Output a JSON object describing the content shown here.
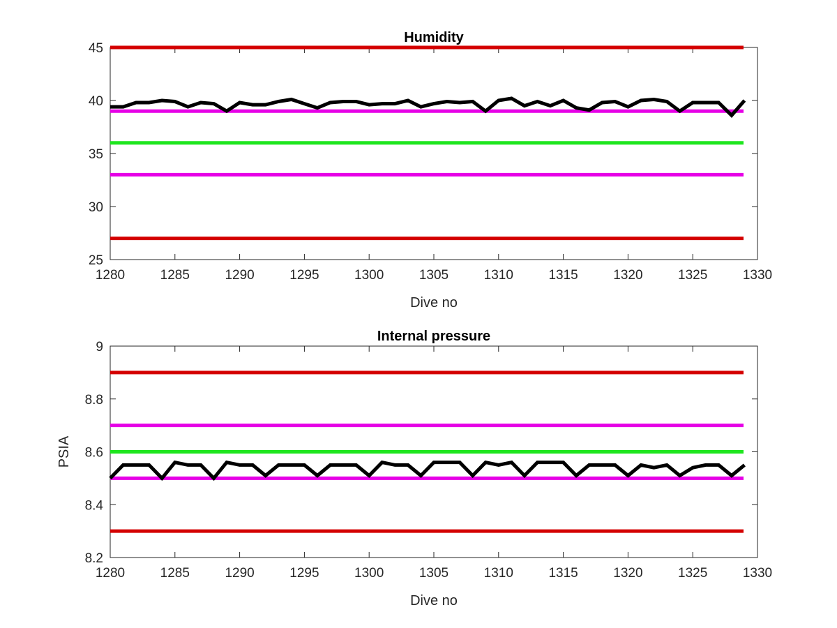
{
  "chart_data": [
    {
      "type": "line",
      "title": "Humidity",
      "xlabel": "Dive no",
      "ylabel": "",
      "xlim": [
        1280,
        1330
      ],
      "ylim": [
        25,
        45
      ],
      "xticks": [
        1280,
        1285,
        1290,
        1295,
        1300,
        1305,
        1310,
        1315,
        1320,
        1325,
        1330
      ],
      "yticks": [
        25,
        30,
        35,
        40,
        45
      ],
      "grid": false,
      "reference_lines": [
        {
          "y": 45,
          "color": "#d40000"
        },
        {
          "y": 39,
          "color": "#e600e6"
        },
        {
          "y": 36,
          "color": "#1ee61e"
        },
        {
          "y": 33,
          "color": "#e600e6"
        },
        {
          "y": 27,
          "color": "#d40000"
        }
      ],
      "series": [
        {
          "color": "#000000",
          "x": [
            1280,
            1281,
            1282,
            1283,
            1284,
            1285,
            1286,
            1287,
            1288,
            1289,
            1290,
            1291,
            1292,
            1293,
            1294,
            1295,
            1296,
            1297,
            1298,
            1299,
            1300,
            1301,
            1302,
            1303,
            1304,
            1305,
            1306,
            1307,
            1308,
            1309,
            1310,
            1311,
            1312,
            1313,
            1314,
            1315,
            1316,
            1317,
            1318,
            1319,
            1320,
            1321,
            1322,
            1323,
            1324,
            1325,
            1326,
            1327,
            1328,
            1329
          ],
          "y": [
            39.4,
            39.4,
            39.8,
            39.8,
            40.0,
            39.9,
            39.4,
            39.8,
            39.7,
            39.0,
            39.8,
            39.6,
            39.6,
            39.9,
            40.1,
            39.7,
            39.3,
            39.8,
            39.9,
            39.9,
            39.6,
            39.7,
            39.7,
            40.0,
            39.4,
            39.7,
            39.9,
            39.8,
            39.9,
            39.0,
            40.0,
            40.2,
            39.5,
            39.9,
            39.5,
            40.0,
            39.3,
            39.1,
            39.8,
            39.9,
            39.4,
            40.0,
            40.1,
            39.9,
            39.0,
            39.8,
            39.8,
            39.8,
            38.6,
            40.0
          ]
        }
      ]
    },
    {
      "type": "line",
      "title": "Internal pressure",
      "xlabel": "Dive no",
      "ylabel": "PSIA",
      "xlim": [
        1280,
        1330
      ],
      "ylim": [
        8.2,
        9.0
      ],
      "xticks": [
        1280,
        1285,
        1290,
        1295,
        1300,
        1305,
        1310,
        1315,
        1320,
        1325,
        1330
      ],
      "yticks": [
        8.2,
        8.4,
        8.6,
        8.8,
        9
      ],
      "grid": false,
      "reference_lines": [
        {
          "y": 8.9,
          "color": "#d40000"
        },
        {
          "y": 8.7,
          "color": "#e600e6"
        },
        {
          "y": 8.6,
          "color": "#1ee61e"
        },
        {
          "y": 8.5,
          "color": "#e600e6"
        },
        {
          "y": 8.3,
          "color": "#d40000"
        }
      ],
      "series": [
        {
          "color": "#000000",
          "x": [
            1280,
            1281,
            1282,
            1283,
            1284,
            1285,
            1286,
            1287,
            1288,
            1289,
            1290,
            1291,
            1292,
            1293,
            1294,
            1295,
            1296,
            1297,
            1298,
            1299,
            1300,
            1301,
            1302,
            1303,
            1304,
            1305,
            1306,
            1307,
            1308,
            1309,
            1310,
            1311,
            1312,
            1313,
            1314,
            1315,
            1316,
            1317,
            1318,
            1319,
            1320,
            1321,
            1322,
            1323,
            1324,
            1325,
            1326,
            1327,
            1328,
            1329
          ],
          "y": [
            8.5,
            8.55,
            8.55,
            8.55,
            8.5,
            8.56,
            8.55,
            8.55,
            8.5,
            8.56,
            8.55,
            8.55,
            8.51,
            8.55,
            8.55,
            8.55,
            8.51,
            8.55,
            8.55,
            8.55,
            8.51,
            8.56,
            8.55,
            8.55,
            8.51,
            8.56,
            8.56,
            8.56,
            8.51,
            8.56,
            8.55,
            8.56,
            8.51,
            8.56,
            8.56,
            8.56,
            8.51,
            8.55,
            8.55,
            8.55,
            8.51,
            8.55,
            8.54,
            8.55,
            8.51,
            8.54,
            8.55,
            8.55,
            8.51,
            8.55
          ]
        }
      ]
    }
  ]
}
